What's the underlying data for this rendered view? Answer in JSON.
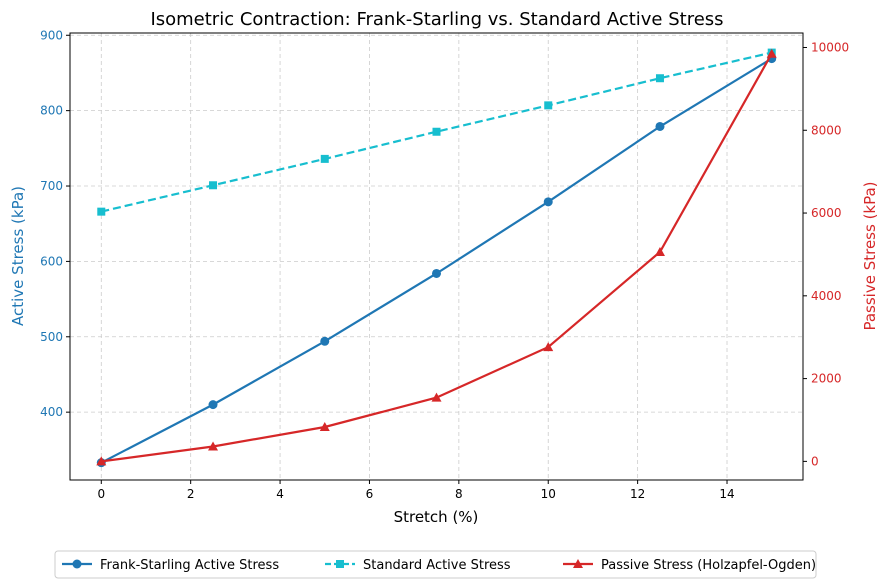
{
  "chart_data": {
    "type": "line",
    "title": "Isometric Contraction: Frank-Starling vs. Standard Active Stress",
    "xlabel": "Stretch (%)",
    "ylabel_left": "Active Stress (kPa)",
    "ylabel_right": "Passive Stress (kPa)",
    "x": [
      0,
      2.5,
      5,
      7.5,
      10,
      12.5,
      15
    ],
    "xlim": [
      -0.7,
      15.7
    ],
    "ylim_left": [
      310,
      903
    ],
    "ylim_right": [
      -450,
      10350
    ],
    "xticks": [
      "0",
      "2",
      "4",
      "6",
      "8",
      "10",
      "12",
      "14"
    ],
    "yticks_left": [
      "400",
      "500",
      "600",
      "700",
      "800",
      "900"
    ],
    "yticks_right": [
      "0",
      "2000",
      "4000",
      "6000",
      "8000",
      "10000"
    ],
    "grid": true,
    "legend_position": "bottom-center",
    "series": [
      {
        "name": "Frank-Starling Active Stress",
        "axis": "left",
        "values": [
          333,
          410,
          494,
          584,
          679,
          779,
          869
        ],
        "color": "#1f77b4",
        "marker": "circle",
        "linestyle": "solid"
      },
      {
        "name": "Standard Active Stress",
        "axis": "left",
        "values": [
          666,
          701,
          736,
          772,
          807,
          843,
          877
        ],
        "color": "#17becf",
        "marker": "square",
        "linestyle": "dashed"
      },
      {
        "name": "Passive Stress (Holzapfel-Ogden)",
        "axis": "right",
        "values": [
          0,
          360,
          830,
          1540,
          2760,
          5060,
          9850
        ],
        "color": "#d62728",
        "marker": "triangle",
        "linestyle": "solid"
      }
    ],
    "colors": {
      "left_axis": "#1f77b4",
      "right_axis": "#d62728",
      "grid": "#cccccc"
    }
  }
}
